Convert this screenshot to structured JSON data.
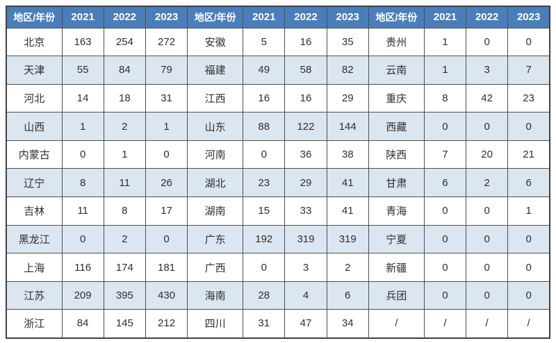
{
  "chart_data": {
    "type": "table",
    "header": [
      "地区/年份",
      "2021",
      "2022",
      "2023"
    ],
    "column_groups": [
      {
        "rows": [
          {
            "region": "北京",
            "values": [
              "163",
              "254",
              "272"
            ]
          },
          {
            "region": "天津",
            "values": [
              "55",
              "84",
              "79"
            ]
          },
          {
            "region": "河北",
            "values": [
              "14",
              "18",
              "31"
            ]
          },
          {
            "region": "山西",
            "values": [
              "1",
              "2",
              "1"
            ]
          },
          {
            "region": "内蒙古",
            "values": [
              "0",
              "1",
              "0"
            ]
          },
          {
            "region": "辽宁",
            "values": [
              "8",
              "11",
              "26"
            ]
          },
          {
            "region": "吉林",
            "values": [
              "11",
              "8",
              "17"
            ]
          },
          {
            "region": "黑龙江",
            "values": [
              "0",
              "2",
              "0"
            ]
          },
          {
            "region": "上海",
            "values": [
              "116",
              "174",
              "181"
            ]
          },
          {
            "region": "江苏",
            "values": [
              "209",
              "395",
              "430"
            ]
          },
          {
            "region": "浙江",
            "values": [
              "84",
              "145",
              "212"
            ]
          }
        ]
      },
      {
        "rows": [
          {
            "region": "安徽",
            "values": [
              "5",
              "16",
              "35"
            ]
          },
          {
            "region": "福建",
            "values": [
              "49",
              "58",
              "82"
            ]
          },
          {
            "region": "江西",
            "values": [
              "16",
              "16",
              "29"
            ]
          },
          {
            "region": "山东",
            "values": [
              "88",
              "122",
              "144"
            ]
          },
          {
            "region": "河南",
            "values": [
              "0",
              "36",
              "38"
            ]
          },
          {
            "region": "湖北",
            "values": [
              "23",
              "29",
              "41"
            ]
          },
          {
            "region": "湖南",
            "values": [
              "15",
              "33",
              "41"
            ]
          },
          {
            "region": "广东",
            "values": [
              "192",
              "319",
              "319"
            ]
          },
          {
            "region": "广西",
            "values": [
              "0",
              "3",
              "2"
            ]
          },
          {
            "region": "海南",
            "values": [
              "28",
              "4",
              "6"
            ]
          },
          {
            "region": "四川",
            "values": [
              "31",
              "47",
              "34"
            ]
          }
        ]
      },
      {
        "rows": [
          {
            "region": "贵州",
            "values": [
              "1",
              "0",
              "0"
            ]
          },
          {
            "region": "云南",
            "values": [
              "1",
              "3",
              "7"
            ]
          },
          {
            "region": "重庆",
            "values": [
              "8",
              "42",
              "23"
            ]
          },
          {
            "region": "西藏",
            "values": [
              "0",
              "0",
              "0"
            ]
          },
          {
            "region": "陕西",
            "values": [
              "7",
              "20",
              "21"
            ]
          },
          {
            "region": "甘肃",
            "values": [
              "6",
              "2",
              "6"
            ]
          },
          {
            "region": "青海",
            "values": [
              "0",
              "0",
              "1"
            ]
          },
          {
            "region": "宁夏",
            "values": [
              "0",
              "0",
              "0"
            ]
          },
          {
            "region": "新疆",
            "values": [
              "0",
              "0",
              "0"
            ]
          },
          {
            "region": "兵团",
            "values": [
              "0",
              "0",
              "0"
            ]
          },
          {
            "region": "/",
            "values": [
              "/",
              "/",
              "/"
            ]
          }
        ]
      }
    ],
    "layout": {
      "row_count": 11,
      "group_count": 3,
      "banding": "even-rows-shaded"
    }
  },
  "colors": {
    "header_bg": "#4a7ebb",
    "header_text": "#ffffff",
    "row_bg": "#ffffff",
    "row_alt_bg": "#dce6f1",
    "border": "#4d4d4d",
    "cell_text": "#2e2e2e"
  }
}
